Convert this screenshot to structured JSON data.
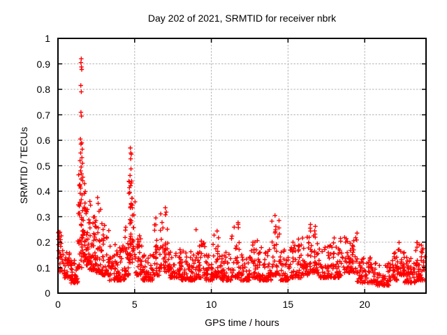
{
  "chart_data": {
    "type": "scatter",
    "title": "Day 202 of 2021, SRMTID for receiver nbrk",
    "xlabel": "GPS time / hours",
    "ylabel": "SRMTID / TECUs",
    "xlim": [
      0,
      24
    ],
    "ylim": [
      0,
      1
    ],
    "xticks": [
      0,
      5,
      10,
      15,
      20
    ],
    "xtick_labels": [
      "0",
      "5",
      "10",
      "15",
      "20"
    ],
    "yticks": [
      0,
      0.1,
      0.2,
      0.3,
      0.4,
      0.5,
      0.6,
      0.7,
      0.8,
      0.9,
      1
    ],
    "ytick_labels": [
      "0",
      "0.1",
      "0.2",
      "0.3",
      "0.4",
      "0.5",
      "0.6",
      "0.7",
      "0.8",
      "0.9",
      "1"
    ],
    "grid": true,
    "grid_color": "#b3b3b3",
    "axis_color": "#000000",
    "marker": "plus",
    "marker_color": "#ff0000",
    "series_name": "SRMTID for receiver nbrk",
    "outlier_points": [
      [
        1.52,
        0.92
      ],
      [
        1.5,
        0.905
      ],
      [
        1.53,
        0.888
      ],
      [
        1.55,
        0.878
      ],
      [
        1.49,
        0.815
      ],
      [
        1.52,
        0.79
      ],
      [
        1.5,
        0.71
      ],
      [
        1.53,
        0.695
      ],
      [
        1.46,
        0.605
      ],
      [
        1.55,
        0.59
      ],
      [
        1.5,
        0.585
      ],
      [
        1.58,
        0.565
      ],
      [
        1.48,
        0.55
      ],
      [
        1.56,
        0.532
      ],
      [
        1.44,
        0.52
      ],
      [
        1.6,
        0.51
      ],
      [
        1.51,
        0.495
      ],
      [
        1.47,
        0.48
      ],
      [
        1.54,
        0.468
      ],
      [
        1.62,
        0.455
      ],
      [
        4.72,
        0.57
      ],
      [
        4.75,
        0.55
      ],
      [
        4.78,
        0.545
      ],
      [
        4.74,
        0.527
      ],
      [
        4.76,
        0.488
      ],
      [
        4.7,
        0.462
      ],
      [
        4.8,
        0.44
      ],
      [
        4.73,
        0.422
      ],
      [
        4.68,
        0.395
      ],
      [
        4.82,
        0.372
      ],
      [
        4.77,
        0.35
      ],
      [
        4.85,
        0.335
      ],
      [
        2.08,
        0.36
      ],
      [
        2.12,
        0.345
      ],
      [
        2.58,
        0.375
      ],
      [
        2.62,
        0.352
      ],
      [
        6.38,
        0.295
      ],
      [
        7.0,
        0.335
      ],
      [
        7.06,
        0.318
      ],
      [
        14.15,
        0.305
      ],
      [
        0.05,
        0.24
      ],
      [
        0.09,
        0.225
      ],
      [
        0.12,
        0.21
      ]
    ],
    "density_segments": [
      [
        0.0,
        0.35,
        28,
        0.08,
        0.24,
        1.3
      ],
      [
        0.35,
        0.85,
        35,
        0.06,
        0.16,
        2.0
      ],
      [
        0.85,
        1.3,
        40,
        0.04,
        0.13,
        2.0
      ],
      [
        1.3,
        1.55,
        32,
        0.1,
        0.5,
        1.5
      ],
      [
        1.55,
        1.8,
        35,
        0.12,
        0.46,
        1.4
      ],
      [
        1.8,
        2.05,
        30,
        0.11,
        0.34,
        1.8
      ],
      [
        2.05,
        2.45,
        45,
        0.09,
        0.3,
        2.0
      ],
      [
        2.45,
        2.85,
        40,
        0.08,
        0.34,
        2.4
      ],
      [
        2.85,
        3.35,
        45,
        0.07,
        0.29,
        2.4
      ],
      [
        3.35,
        4.35,
        75,
        0.05,
        0.2,
        2.2
      ],
      [
        4.35,
        4.62,
        25,
        0.07,
        0.26,
        2.0
      ],
      [
        4.62,
        5.05,
        48,
        0.12,
        0.44,
        1.5
      ],
      [
        5.05,
        5.5,
        32,
        0.07,
        0.24,
        2.0
      ],
      [
        5.5,
        6.2,
        48,
        0.05,
        0.15,
        2.0
      ],
      [
        6.2,
        6.62,
        30,
        0.07,
        0.28,
        2.1
      ],
      [
        6.62,
        7.3,
        46,
        0.08,
        0.32,
        2.2
      ],
      [
        7.3,
        8.05,
        48,
        0.06,
        0.18,
        2.2
      ],
      [
        8.05,
        9.0,
        62,
        0.05,
        0.21,
        2.5
      ],
      [
        9.0,
        9.6,
        40,
        0.06,
        0.25,
        2.6
      ],
      [
        9.6,
        10.1,
        36,
        0.05,
        0.15,
        2.0
      ],
      [
        10.1,
        10.62,
        36,
        0.06,
        0.27,
        2.6
      ],
      [
        10.62,
        11.3,
        46,
        0.05,
        0.16,
        2.2
      ],
      [
        11.3,
        11.9,
        40,
        0.06,
        0.28,
        2.5
      ],
      [
        11.9,
        12.5,
        42,
        0.05,
        0.16,
        2.2
      ],
      [
        12.5,
        13.12,
        42,
        0.06,
        0.22,
        2.5
      ],
      [
        13.12,
        13.9,
        52,
        0.05,
        0.18,
        2.3
      ],
      [
        13.9,
        14.5,
        40,
        0.07,
        0.29,
        2.4
      ],
      [
        14.5,
        15.2,
        48,
        0.05,
        0.18,
        2.3
      ],
      [
        15.2,
        15.85,
        42,
        0.06,
        0.23,
        2.5
      ],
      [
        15.85,
        16.42,
        40,
        0.07,
        0.24,
        2.3
      ],
      [
        16.42,
        17.0,
        42,
        0.08,
        0.27,
        2.2
      ],
      [
        17.0,
        17.8,
        52,
        0.06,
        0.2,
        2.4
      ],
      [
        17.8,
        18.6,
        52,
        0.06,
        0.22,
        2.4
      ],
      [
        18.6,
        19.5,
        60,
        0.08,
        0.25,
        2.0
      ],
      [
        19.5,
        20.5,
        58,
        0.04,
        0.14,
        2.2
      ],
      [
        20.5,
        21.6,
        64,
        0.03,
        0.12,
        2.2
      ],
      [
        21.6,
        22.2,
        38,
        0.05,
        0.17,
        2.3
      ],
      [
        22.2,
        22.62,
        30,
        0.07,
        0.22,
        2.2
      ],
      [
        22.62,
        23.3,
        46,
        0.04,
        0.14,
        2.2
      ],
      [
        23.3,
        23.95,
        50,
        0.05,
        0.2,
        1.8
      ]
    ],
    "seed": 7
  }
}
